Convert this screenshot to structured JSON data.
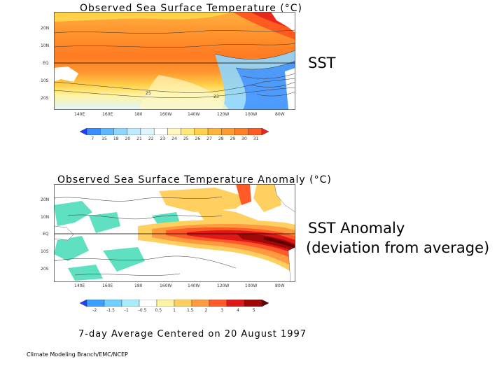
{
  "sst_panel": {
    "title": "Observed Sea Surface Temperature (°C)",
    "lat_ticks": [
      "20N",
      "10N",
      "EQ",
      "10S",
      "20S"
    ],
    "lon_ticks": [
      "140E",
      "160E",
      "180",
      "160W",
      "140W",
      "120W",
      "100W",
      "80W"
    ],
    "contour_labels": [
      "25",
      "23"
    ],
    "colorbar": {
      "labels": [
        "7",
        "15",
        "18",
        "20",
        "21",
        "22",
        "23",
        "24",
        "25",
        "26",
        "27",
        "28",
        "29",
        "30",
        "31"
      ],
      "colors": [
        "#2040ff",
        "#3a8cff",
        "#5fb8ff",
        "#8fd6ff",
        "#bfeaff",
        "#dff5ff",
        "#ffffff",
        "#fff7bf",
        "#ffe97a",
        "#ffd24a",
        "#ffb43a",
        "#ff9a30",
        "#ff7f28",
        "#ff5a20",
        "#e8281a"
      ]
    },
    "side_label": "SST"
  },
  "anomaly_panel": {
    "title": "Observed Sea Surface Temperature Anomaly (°C)",
    "lat_ticks": [
      "20N",
      "10N",
      "EQ",
      "10S",
      "20S"
    ],
    "lon_ticks": [
      "140E",
      "160E",
      "180",
      "160W",
      "140W",
      "120W",
      "100W",
      "80W"
    ],
    "colorbar": {
      "labels": [
        "-2",
        "-1.5",
        "-1",
        "-0.5",
        "0.5",
        "1",
        "1.5",
        "2",
        "3",
        "4",
        "5"
      ],
      "colors": [
        "#2040ff",
        "#3aa0ff",
        "#6fd0ff",
        "#a8ecff",
        "#ffffff",
        "#fff2a0",
        "#ffd060",
        "#ff9a40",
        "#ff5a28",
        "#e01818",
        "#a00808",
        "#600000"
      ]
    },
    "side_label_line1": "SST Anomaly",
    "side_label_line2": "(deviation from average)"
  },
  "footer": {
    "average_caption": "7-day Average Centered on 20 August 1997",
    "credit": "Climate Modeling Branch/EMC/NCEP"
  }
}
